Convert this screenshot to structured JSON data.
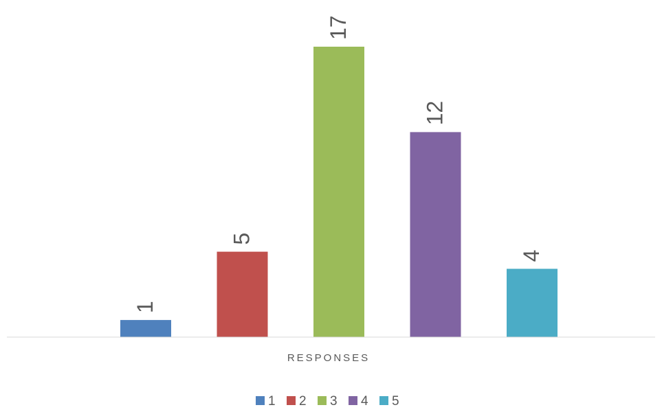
{
  "chart_data": {
    "type": "bar",
    "categories": [
      "RESPONSES"
    ],
    "series": [
      {
        "name": "1",
        "values": [
          1
        ],
        "color": "#4F81BD"
      },
      {
        "name": "2",
        "values": [
          5
        ],
        "color": "#C0504D"
      },
      {
        "name": "3",
        "values": [
          17
        ],
        "color": "#9BBB59"
      },
      {
        "name": "4",
        "values": [
          12
        ],
        "color": "#8064A2"
      },
      {
        "name": "5",
        "values": [
          4
        ],
        "color": "#4BACC6"
      }
    ],
    "title": "",
    "xlabel": "",
    "ylabel": "",
    "ylim": [
      0,
      17
    ],
    "grid": false,
    "legend_position": "bottom",
    "data_labels": "outside-end-rotated"
  }
}
